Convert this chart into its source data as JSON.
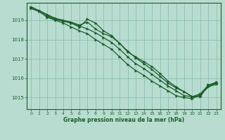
{
  "xlabel": "Graphe pression niveau de la mer (hPa)",
  "background_color": "#b8ddd0",
  "grid_color": "#8bbfb0",
  "line_color": "#1a5c2a",
  "xlim": [
    -0.5,
    23.5
  ],
  "ylim": [
    1014.4,
    1019.9
  ],
  "yticks": [
    1015,
    1016,
    1017,
    1018,
    1019
  ],
  "xticks": [
    0,
    1,
    2,
    3,
    4,
    5,
    6,
    7,
    8,
    9,
    10,
    11,
    12,
    13,
    14,
    15,
    16,
    17,
    18,
    19,
    20,
    21,
    22,
    23
  ],
  "line1_x": [
    0,
    1,
    2,
    3,
    4,
    5,
    6,
    7,
    8,
    9,
    10,
    11,
    12,
    13,
    14,
    15,
    16,
    17,
    18,
    19,
    20,
    21,
    22,
    23
  ],
  "line1_y": [
    1019.65,
    1019.45,
    1019.25,
    1019.05,
    1018.95,
    1018.85,
    1018.7,
    1018.55,
    1018.35,
    1018.1,
    1017.85,
    1017.5,
    1017.1,
    1016.75,
    1016.5,
    1016.2,
    1015.9,
    1015.6,
    1015.35,
    1015.1,
    1015.05,
    1015.1,
    1015.6,
    1015.75
  ],
  "line2_x": [
    0,
    1,
    2,
    3,
    4,
    5,
    6,
    7,
    8,
    9,
    10,
    11,
    12,
    13,
    14,
    15,
    16,
    17,
    18,
    19,
    20,
    21,
    22,
    23
  ],
  "line2_y": [
    1019.7,
    1019.5,
    1019.3,
    1019.1,
    1019.0,
    1018.9,
    1018.75,
    1018.9,
    1018.55,
    1018.3,
    1018.15,
    1017.8,
    1017.35,
    1017.1,
    1016.85,
    1016.6,
    1016.25,
    1015.85,
    1015.55,
    1015.3,
    1015.05,
    1015.05,
    1015.65,
    1015.8
  ],
  "line3_x": [
    2,
    3,
    4,
    5,
    6,
    7,
    8,
    9,
    10,
    11,
    12,
    13,
    14,
    15,
    16,
    17,
    18,
    19,
    20,
    21,
    22,
    23
  ],
  "line3_y": [
    1019.2,
    1019.05,
    1018.95,
    1018.85,
    1018.65,
    1019.05,
    1018.85,
    1018.45,
    1018.2,
    1017.8,
    1017.4,
    1017.05,
    1016.75,
    1016.45,
    1016.1,
    1015.75,
    1015.5,
    1015.3,
    1015.05,
    1015.2,
    1015.65,
    1015.75
  ],
  "line4_x": [
    0,
    1,
    2,
    3,
    4,
    5,
    6,
    7,
    8,
    9,
    10,
    11,
    12,
    13,
    14,
    15,
    16,
    17,
    18,
    19,
    20,
    21,
    22,
    23
  ],
  "line4_y": [
    1019.6,
    1019.45,
    1019.15,
    1019.0,
    1018.85,
    1018.65,
    1018.45,
    1018.3,
    1018.0,
    1017.75,
    1017.5,
    1017.1,
    1016.7,
    1016.4,
    1016.15,
    1015.85,
    1015.6,
    1015.35,
    1015.1,
    1015.0,
    1014.95,
    1015.15,
    1015.55,
    1015.7
  ]
}
